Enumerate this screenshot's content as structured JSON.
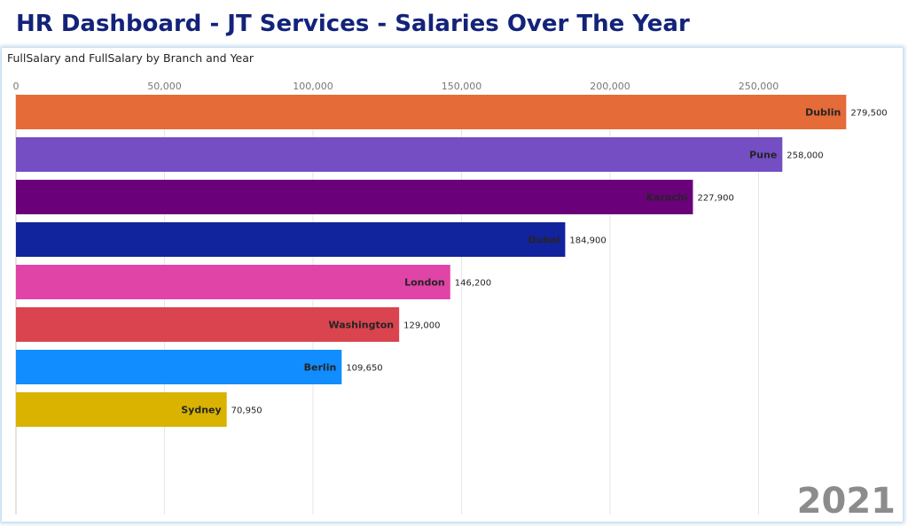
{
  "header": {
    "title": "HR Dashboard - JT Services - Salaries Over The Year"
  },
  "chart_data": {
    "type": "bar",
    "orientation": "horizontal",
    "title": "FullSalary and FullSalary by Branch and Year",
    "categories": [
      "Dublin",
      "Pune",
      "Karachi",
      "Dubai",
      "London",
      "Washington",
      "Berlin",
      "Sydney"
    ],
    "values": [
      279500,
      258000,
      227900,
      184900,
      146200,
      129000,
      109650,
      70950
    ],
    "value_labels": [
      "279,500",
      "258,000",
      "227,900",
      "184,900",
      "146,200",
      "129,000",
      "109,650",
      "70,950"
    ],
    "colors": [
      "#E56B38",
      "#744EC2",
      "#6B007B",
      "#12239E",
      "#E044A7",
      "#D9444F",
      "#118DFF",
      "#D9B300"
    ],
    "xticks": [
      0,
      50000,
      100000,
      150000,
      200000,
      250000
    ],
    "xtick_labels": [
      "0",
      "50,000",
      "100,000",
      "150,000",
      "200,000",
      "250,000"
    ],
    "xlim": [
      0,
      290000
    ],
    "grid": true,
    "year": "2021"
  }
}
